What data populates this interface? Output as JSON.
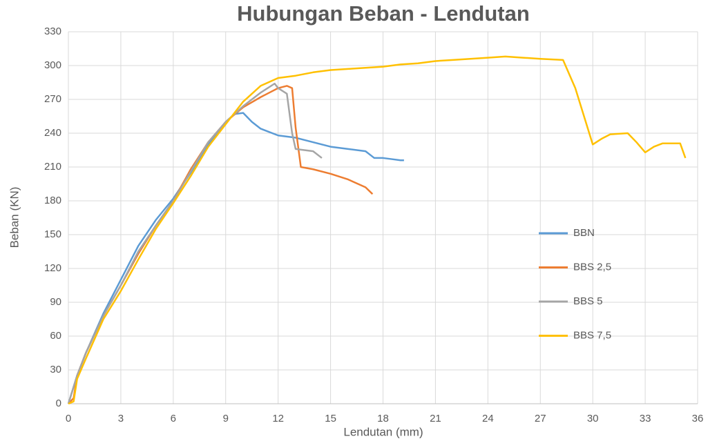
{
  "chart_data": {
    "type": "line",
    "title": "Hubungan Beban - Lendutan",
    "x_label": "Lendutan (mm)",
    "y_label": "Beban (KN)",
    "xlim": [
      0,
      36
    ],
    "xticks": [
      0,
      3,
      6,
      9,
      12,
      15,
      18,
      21,
      24,
      27,
      30,
      33,
      36
    ],
    "ylim": [
      0,
      330
    ],
    "yticks": [
      0,
      30,
      60,
      90,
      120,
      150,
      180,
      210,
      240,
      270,
      300,
      330
    ],
    "grid": true,
    "legend": "right",
    "series": [
      {
        "name": "BBN",
        "color": "#5b9bd5",
        "x": [
          0,
          0.5,
          1,
          2,
          3,
          4,
          5,
          6,
          7,
          8,
          9,
          9.5,
          10,
          10.5,
          11,
          12,
          13,
          14,
          15,
          16,
          17,
          17.5,
          18,
          18.5,
          19,
          19.2
        ],
        "values": [
          0,
          25,
          45,
          80,
          110,
          140,
          163,
          182,
          205,
          230,
          250,
          257,
          258,
          250,
          244,
          238,
          236,
          232,
          228,
          226,
          224,
          218,
          218,
          217,
          216,
          216
        ]
      },
      {
        "name": "BBS 2,5",
        "color": "#ed7d31",
        "x": [
          0,
          0.3,
          0.5,
          1,
          2,
          3,
          4,
          5,
          6,
          7,
          8,
          9,
          10,
          11,
          12,
          12.5,
          12.8,
          13,
          13.3,
          14,
          15,
          16,
          17,
          17.4
        ],
        "values": [
          0,
          5,
          25,
          45,
          78,
          105,
          133,
          158,
          180,
          208,
          232,
          250,
          263,
          272,
          280,
          282,
          280,
          245,
          210,
          208,
          204,
          199,
          192,
          186
        ]
      },
      {
        "name": "BBS 5",
        "color": "#a5a5a5",
        "x": [
          0,
          0.5,
          1,
          2,
          3,
          4,
          5,
          6,
          7,
          8,
          9,
          10,
          11,
          11.8,
          12,
          12.5,
          12.8,
          13,
          14,
          14.5
        ],
        "values": [
          0,
          25,
          45,
          78,
          105,
          135,
          158,
          180,
          206,
          232,
          250,
          264,
          276,
          284,
          280,
          275,
          240,
          226,
          224,
          218
        ]
      },
      {
        "name": "BBS 7,5",
        "color": "#ffc000",
        "x": [
          0,
          0.3,
          0.5,
          1,
          2,
          3,
          4,
          5,
          6,
          7,
          8,
          9,
          10,
          11,
          12,
          13,
          14,
          15,
          16,
          17,
          18,
          19,
          20,
          21,
          22,
          23,
          24,
          25,
          26,
          27,
          28.3,
          29,
          30,
          30.5,
          31,
          32,
          32.5,
          33,
          33.5,
          34,
          35,
          35.3
        ],
        "values": [
          0,
          2,
          22,
          40,
          75,
          100,
          128,
          155,
          178,
          202,
          228,
          248,
          268,
          282,
          289,
          291,
          294,
          296,
          297,
          298,
          299,
          301,
          302,
          304,
          305,
          306,
          307,
          308,
          307,
          306,
          305,
          280,
          230,
          235,
          239,
          240,
          232,
          223,
          228,
          231,
          231,
          218
        ]
      }
    ]
  }
}
